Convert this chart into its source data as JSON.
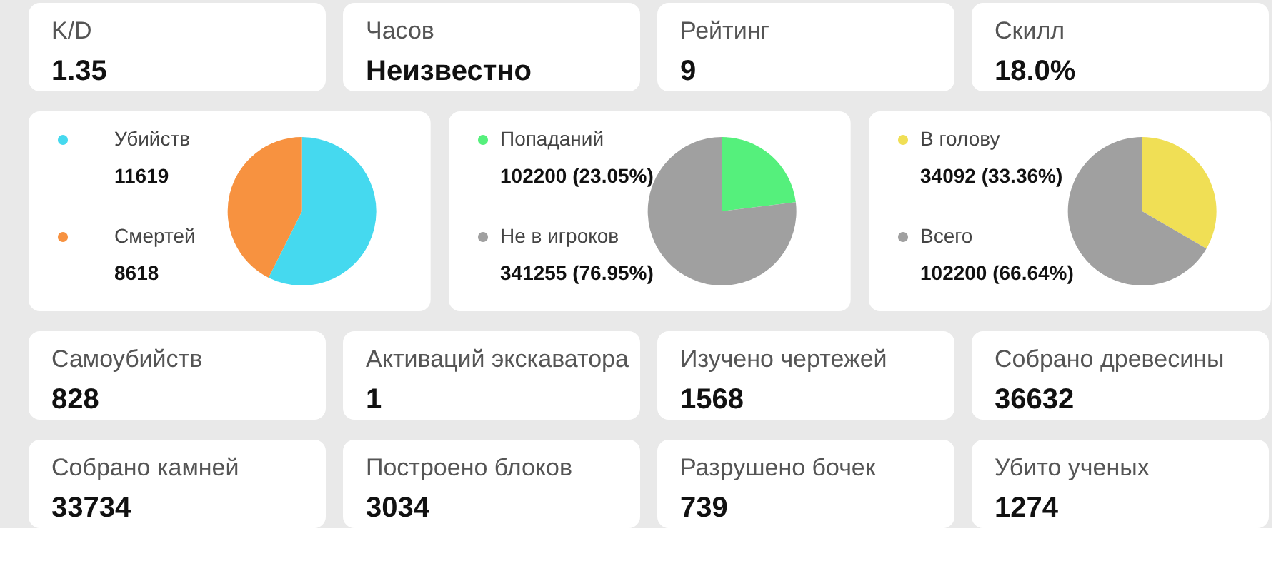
{
  "chart_data": [
    {
      "type": "other",
      "title": "K/D",
      "annotations": [
        "1.35"
      ]
    },
    {
      "type": "other",
      "title": "Часов",
      "annotations": [
        "Неизвестно"
      ]
    },
    {
      "type": "other",
      "title": "Рейтинг",
      "annotations": [
        "9"
      ]
    },
    {
      "type": "other",
      "title": "Скилл",
      "annotations": [
        "18.0%"
      ]
    },
    {
      "type": "pie",
      "categories": [
        "Убийств",
        "Смертей"
      ],
      "values": [
        11619,
        8618
      ],
      "colors": [
        "#45d9ef",
        "#f79240"
      ],
      "data_labels": true,
      "legend": "left"
    },
    {
      "type": "pie",
      "categories": [
        "Попаданий",
        "Не в игроков"
      ],
      "values": [
        23.05,
        76.95
      ],
      "colors": [
        "#55f07c",
        "#a0a0a0"
      ],
      "value_labels": [
        "102200 (23.05%)",
        "341255 (76.95%)"
      ],
      "legend": "left"
    },
    {
      "type": "pie",
      "categories": [
        "В голову",
        "Всего"
      ],
      "values": [
        33.36,
        66.64
      ],
      "colors": [
        "#f0df55",
        "#a0a0a0"
      ],
      "value_labels": [
        "34092 (33.36%)",
        "102200 (66.64%)"
      ],
      "legend": "left"
    },
    {
      "type": "other",
      "title": "Самоубийств",
      "annotations": [
        "828"
      ]
    },
    {
      "type": "other",
      "title": "Активаций экскаватора",
      "annotations": [
        "1"
      ]
    },
    {
      "type": "other",
      "title": "Изучено чертежей",
      "annotations": [
        "1568"
      ]
    },
    {
      "type": "other",
      "title": "Собрано древесины",
      "annotations": [
        "36632"
      ]
    },
    {
      "type": "other",
      "title": "Собрано камней",
      "annotations": [
        "33734"
      ]
    },
    {
      "type": "other",
      "title": "Построено блоков",
      "annotations": [
        "3034"
      ]
    },
    {
      "type": "other",
      "title": "Разрушено бочек",
      "annotations": [
        "739"
      ]
    },
    {
      "type": "other",
      "title": "Убито ученых",
      "annotations": [
        "1274"
      ]
    }
  ]
}
